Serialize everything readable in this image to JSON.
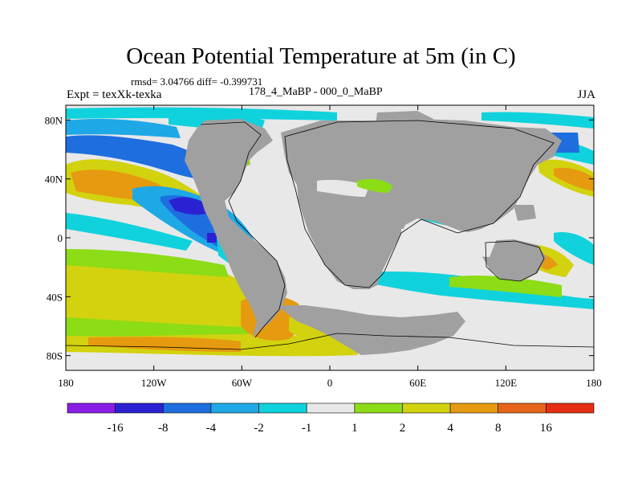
{
  "title": "Ocean Potential Temperature at 5m (in C)",
  "stats_line": "rmsd= 3.04766 diff= -0.399731",
  "expt_line": "Expt = texXk-texka",
  "experiments_line": "178_4_MaBP - 000_0_MaBP",
  "season": "JJA",
  "map": {
    "lon_range": [
      -180,
      180
    ],
    "lat_range": [
      -90,
      90
    ],
    "lon_ticks": [
      {
        "value": -180,
        "label": "180"
      },
      {
        "value": -120,
        "label": "120W"
      },
      {
        "value": -60,
        "label": "60W"
      },
      {
        "value": 0,
        "label": "0"
      },
      {
        "value": 60,
        "label": "60E"
      },
      {
        "value": 120,
        "label": "120E"
      },
      {
        "value": 180,
        "label": "180"
      }
    ],
    "lat_ticks": [
      {
        "value": 80,
        "label": "80N"
      },
      {
        "value": 40,
        "label": "40N"
      },
      {
        "value": 0,
        "label": "0"
      },
      {
        "value": -40,
        "label": "40S"
      },
      {
        "value": -80,
        "label": "80S"
      }
    ],
    "land_color": "#a0a0a0",
    "neutral_color": "#e8e8e8"
  },
  "colorbar": {
    "colors": [
      "#8a1ee6",
      "#2a22d2",
      "#1e6ee0",
      "#1ea8e6",
      "#10d2dc",
      "#e8e8e8",
      "#8cdc16",
      "#d2d20e",
      "#e69a10",
      "#e6641a",
      "#e62e12"
    ],
    "labels": [
      "-16",
      "-8",
      "-4",
      "-2",
      "-1",
      "1",
      "2",
      "4",
      "8",
      "16"
    ]
  }
}
